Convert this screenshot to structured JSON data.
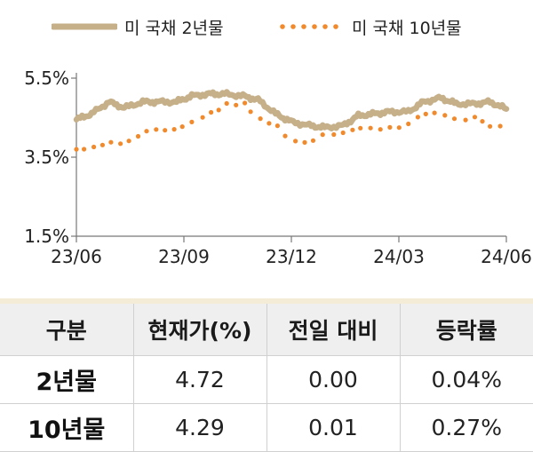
{
  "legend": {
    "series_2y": "미 국채 2년물",
    "series_10y": "미 국채 10년물",
    "color_2y": "#c6b08a",
    "color_10y": "#f08a2c"
  },
  "chart_data": {
    "type": "line",
    "ylim": [
      1.5,
      5.5
    ],
    "y_ticks": [
      "5.5%",
      "3.5%",
      "1.5%"
    ],
    "y_tick_values": [
      5.5,
      3.5,
      1.5
    ],
    "x_ticks": [
      "23/06",
      "23/09",
      "23/12",
      "24/03",
      "24/06"
    ],
    "x_range": [
      "2023-06-01",
      "2024-06-30"
    ],
    "grid": false,
    "legend_position": "top",
    "series": [
      {
        "name": "미 국채 2년물",
        "style": "solid",
        "x": [
          "2023-06-01",
          "2023-06-15",
          "2023-07-01",
          "2023-07-15",
          "2023-08-01",
          "2023-08-15",
          "2023-09-01",
          "2023-09-15",
          "2023-10-01",
          "2023-10-15",
          "2023-11-01",
          "2023-11-15",
          "2023-12-01",
          "2023-12-15",
          "2024-01-01",
          "2024-01-15",
          "2024-02-01",
          "2024-02-15",
          "2024-03-01",
          "2024-03-15",
          "2024-04-01",
          "2024-04-15",
          "2024-05-01",
          "2024-05-15",
          "2024-06-01",
          "2024-06-15",
          "2024-06-30"
        ],
        "values": [
          4.45,
          4.6,
          4.9,
          4.75,
          4.9,
          4.9,
          4.9,
          5.05,
          5.1,
          5.1,
          5.05,
          4.95,
          4.6,
          4.4,
          4.3,
          4.25,
          4.3,
          4.55,
          4.6,
          4.65,
          4.65,
          4.9,
          5.0,
          4.85,
          4.85,
          4.9,
          4.72
        ]
      },
      {
        "name": "미 국채 10년물",
        "style": "dotted",
        "x": [
          "2023-06-01",
          "2023-06-15",
          "2023-07-01",
          "2023-07-15",
          "2023-08-01",
          "2023-08-15",
          "2023-09-01",
          "2023-09-15",
          "2023-10-01",
          "2023-10-15",
          "2023-11-01",
          "2023-11-15",
          "2023-12-01",
          "2023-12-15",
          "2024-01-01",
          "2024-01-15",
          "2024-02-01",
          "2024-02-15",
          "2024-03-01",
          "2024-03-15",
          "2024-04-01",
          "2024-04-15",
          "2024-05-01",
          "2024-05-15",
          "2024-06-01",
          "2024-06-15",
          "2024-06-30"
        ],
        "values": [
          3.7,
          3.75,
          3.85,
          3.85,
          4.1,
          4.2,
          4.2,
          4.35,
          4.6,
          4.8,
          4.9,
          4.5,
          4.3,
          3.95,
          3.85,
          4.05,
          4.1,
          4.25,
          4.25,
          4.25,
          4.3,
          4.6,
          4.65,
          4.45,
          4.5,
          4.3,
          4.29
        ]
      }
    ]
  },
  "table": {
    "headers": [
      "구분",
      "현재가(%)",
      "전일 대비",
      "등락률"
    ],
    "rows": [
      {
        "label": "2년물",
        "price": "4.72",
        "change": "0.00",
        "rate": "0.04%"
      },
      {
        "label": "10년물",
        "price": "4.29",
        "change": "0.01",
        "rate": "0.27%"
      }
    ]
  }
}
